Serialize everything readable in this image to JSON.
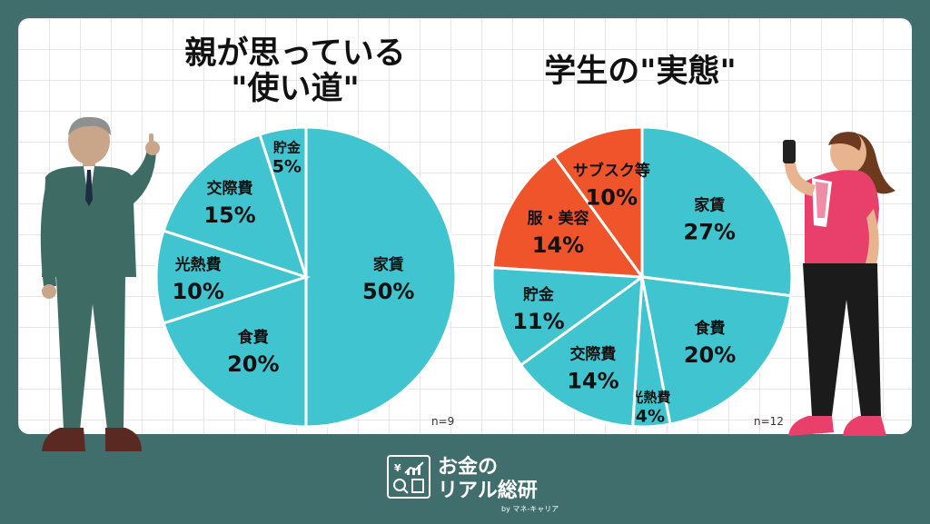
{
  "title_left": "親が思っている\n\"使い道\"",
  "title_right": "学生の\"実態\"",
  "logo": {
    "line1": "お金の",
    "line2": "リアル総研",
    "sub": "by マネ-キャリア"
  },
  "colors": {
    "teal": "#40c4cf",
    "orange": "#f0542a",
    "background": "#3f6e6d"
  },
  "chart_data": [
    {
      "type": "pie",
      "title": "親が思っている\"使い道\"",
      "slices": [
        {
          "label": "家賃",
          "value": 50,
          "value_label": "50%",
          "color": "#40c4cf"
        },
        {
          "label": "食費",
          "value": 20,
          "value_label": "20%",
          "color": "#40c4cf"
        },
        {
          "label": "光熱費",
          "value": 10,
          "value_label": "10%",
          "color": "#40c4cf"
        },
        {
          "label": "交際費",
          "value": 15,
          "value_label": "15%",
          "color": "#40c4cf"
        },
        {
          "label": "貯金",
          "value": 5,
          "value_label": "5%",
          "color": "#40c4cf"
        }
      ],
      "n_label": "n=9"
    },
    {
      "type": "pie",
      "title": "学生の\"実態\"",
      "slices": [
        {
          "label": "家賃",
          "value": 27,
          "value_label": "27%",
          "color": "#40c4cf"
        },
        {
          "label": "食費",
          "value": 20,
          "value_label": "20%",
          "color": "#40c4cf"
        },
        {
          "label": "光熱費",
          "value": 4,
          "value_label": "4%",
          "color": "#40c4cf"
        },
        {
          "label": "交際費",
          "value": 14,
          "value_label": "14%",
          "color": "#40c4cf"
        },
        {
          "label": "貯金",
          "value": 11,
          "value_label": "11%",
          "color": "#40c4cf"
        },
        {
          "label": "服・美容",
          "value": 14,
          "value_label": "14%",
          "color": "#f0542a"
        },
        {
          "label": "サブスク等",
          "value": 10,
          "value_label": "10%",
          "color": "#f0542a"
        }
      ],
      "n_label": "n=12"
    }
  ]
}
